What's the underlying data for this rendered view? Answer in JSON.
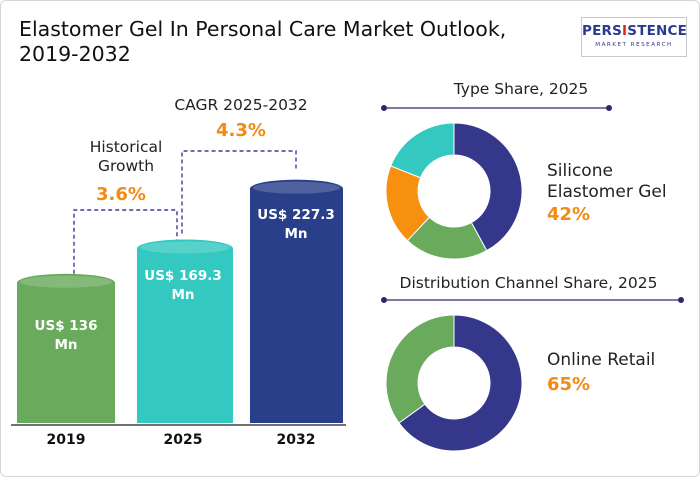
{
  "title": "Elastomer Gel In Personal Care Market Outlook, 2019-2032",
  "logo": {
    "main_pre": "PERS",
    "main_hl": "I",
    "main_post": "STENCE",
    "sub": "MARKET RESEARCH"
  },
  "colors": {
    "bar_2019": "#6aaa5c",
    "bar_2025": "#33c8c0",
    "bar_2032": "#2a3f8a",
    "accent": "#f28a13",
    "donut_navy": "#34378a",
    "donut_green": "#6aaa5c",
    "donut_orange": "#f7900f",
    "donut_teal": "#33c8c0",
    "dash": "#3b3b9c"
  },
  "chart_data": [
    {
      "type": "bar",
      "categories": [
        "2019",
        "2025",
        "2032"
      ],
      "values": [
        136,
        169.3,
        227.3
      ],
      "value_labels": [
        "US$ 136 Mn",
        "US$ 169.3 Mn",
        "US$ 227.3 Mn"
      ],
      "annotations": [
        {
          "label": "Historical Growth",
          "value": "3.6%"
        },
        {
          "label": "CAGR 2025-2032",
          "value": "4.3%"
        }
      ]
    },
    {
      "type": "pie",
      "title": "Type Share, 2025",
      "highlight_label": "Silicone Elastomer Gel",
      "highlight_value": "42%",
      "slices": [
        {
          "value": 42,
          "color": "#34378a"
        },
        {
          "value": 20,
          "color": "#6aaa5c"
        },
        {
          "value": 19,
          "color": "#f7900f"
        },
        {
          "value": 19,
          "color": "#33c8c0"
        }
      ]
    },
    {
      "type": "pie",
      "title": "Distribution Channel Share, 2025",
      "highlight_label": "Online Retail",
      "highlight_value": "65%",
      "slices": [
        {
          "value": 65,
          "color": "#34378a"
        },
        {
          "value": 35,
          "color": "#6aaa5c"
        }
      ]
    }
  ]
}
